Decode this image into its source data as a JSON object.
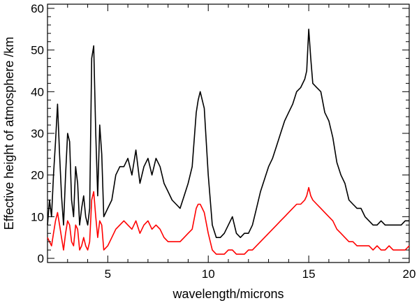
{
  "chart_data": {
    "type": "line",
    "title": "",
    "xlabel": "wavelength/microns",
    "ylabel": "Effective height of atmosphere /km",
    "xlim": [
      2,
      20
    ],
    "ylim": [
      -1,
      61
    ],
    "x_ticks": [
      5,
      10,
      15,
      20
    ],
    "y_ticks": [
      0,
      10,
      20,
      30,
      40,
      50,
      60
    ],
    "x_tick_labels": [
      "5",
      "10",
      "15",
      "20"
    ],
    "y_tick_labels": [
      "0",
      "10",
      "20",
      "30",
      "40",
      "50",
      "60"
    ],
    "grid": false,
    "legend": "none",
    "series": [
      {
        "color": "#000000",
        "x": [
          2.0,
          2.1,
          2.2,
          2.3,
          2.4,
          2.5,
          2.6,
          2.7,
          2.8,
          2.9,
          3.0,
          3.1,
          3.2,
          3.3,
          3.4,
          3.5,
          3.6,
          3.7,
          3.8,
          3.9,
          4.0,
          4.1,
          4.2,
          4.3,
          4.4,
          4.5,
          4.6,
          4.7,
          4.8,
          5.0,
          5.2,
          5.4,
          5.6,
          5.8,
          6.0,
          6.2,
          6.4,
          6.6,
          6.8,
          7.0,
          7.2,
          7.4,
          7.6,
          7.8,
          8.0,
          8.2,
          8.4,
          8.6,
          8.8,
          9.0,
          9.2,
          9.4,
          9.5,
          9.6,
          9.7,
          9.8,
          10.0,
          10.2,
          10.4,
          10.6,
          10.8,
          11.0,
          11.2,
          11.4,
          11.6,
          11.8,
          12.0,
          12.2,
          12.4,
          12.6,
          12.8,
          13.0,
          13.2,
          13.4,
          13.6,
          13.8,
          14.0,
          14.2,
          14.4,
          14.6,
          14.8,
          14.9,
          15.0,
          15.1,
          15.2,
          15.4,
          15.6,
          15.8,
          16.0,
          16.2,
          16.4,
          16.6,
          16.8,
          17.0,
          17.2,
          17.4,
          17.6,
          17.8,
          18.0,
          18.2,
          18.4,
          18.6,
          18.8,
          19.0,
          19.2,
          19.4,
          19.6,
          19.8,
          20.0
        ],
        "y": [
          8,
          14,
          10,
          20,
          28,
          37,
          25,
          15,
          8,
          20,
          30,
          28,
          14,
          10,
          22,
          18,
          8,
          12,
          15,
          10,
          8,
          12,
          48,
          51,
          30,
          15,
          32,
          25,
          10,
          12,
          14,
          20,
          22,
          22,
          24,
          20,
          26,
          18,
          22,
          24,
          20,
          24,
          22,
          18,
          16,
          14,
          13,
          12,
          15,
          18,
          22,
          35,
          38,
          40,
          38,
          36,
          20,
          8,
          5,
          5,
          6,
          8,
          10,
          6,
          5,
          6,
          6,
          8,
          12,
          16,
          19,
          22,
          24,
          27,
          30,
          33,
          35,
          37,
          40,
          41,
          43,
          45,
          55,
          48,
          42,
          41,
          40,
          35,
          33,
          29,
          23,
          20,
          18,
          14,
          13,
          12,
          12,
          10,
          9,
          8,
          8,
          9,
          8,
          8,
          8,
          8,
          8,
          9,
          9
        ]
      },
      {
        "color": "#ff0000",
        "x": [
          2.0,
          2.1,
          2.2,
          2.3,
          2.4,
          2.5,
          2.6,
          2.7,
          2.8,
          2.9,
          3.0,
          3.1,
          3.2,
          3.3,
          3.4,
          3.5,
          3.6,
          3.7,
          3.8,
          3.9,
          4.0,
          4.1,
          4.2,
          4.3,
          4.4,
          4.5,
          4.6,
          4.7,
          4.8,
          5.0,
          5.2,
          5.4,
          5.6,
          5.8,
          6.0,
          6.2,
          6.4,
          6.6,
          6.8,
          7.0,
          7.2,
          7.4,
          7.6,
          7.8,
          8.0,
          8.2,
          8.4,
          8.6,
          8.8,
          9.0,
          9.2,
          9.4,
          9.5,
          9.6,
          9.7,
          9.8,
          10.0,
          10.2,
          10.4,
          10.6,
          10.8,
          11.0,
          11.2,
          11.4,
          11.6,
          11.8,
          12.0,
          12.2,
          12.4,
          12.6,
          12.8,
          13.0,
          13.2,
          13.4,
          13.6,
          13.8,
          14.0,
          14.2,
          14.4,
          14.6,
          14.8,
          14.9,
          15.0,
          15.1,
          15.2,
          15.4,
          15.6,
          15.8,
          16.0,
          16.2,
          16.4,
          16.6,
          16.8,
          17.0,
          17.2,
          17.4,
          17.6,
          17.8,
          18.0,
          18.2,
          18.4,
          18.6,
          18.8,
          19.0,
          19.2,
          19.4,
          19.6,
          19.8,
          20.0
        ],
        "y": [
          5,
          4,
          3,
          6,
          9,
          11,
          8,
          5,
          2,
          6,
          9,
          8,
          4,
          3,
          8,
          7,
          2,
          3,
          5,
          3,
          2,
          4,
          14,
          16,
          10,
          5,
          9,
          8,
          2,
          3,
          5,
          7,
          8,
          9,
          8,
          7,
          9,
          6,
          8,
          9,
          7,
          8,
          7,
          5,
          4,
          4,
          4,
          4,
          5,
          6,
          7,
          12,
          13,
          13,
          12,
          11,
          6,
          2,
          1,
          1,
          1,
          2,
          2,
          1,
          1,
          1,
          2,
          2,
          3,
          4,
          5,
          6,
          7,
          8,
          9,
          10,
          11,
          12,
          13,
          13,
          14,
          15,
          17,
          15,
          14,
          13,
          12,
          11,
          10,
          9,
          7,
          6,
          5,
          4,
          4,
          3,
          3,
          3,
          3,
          2,
          3,
          2,
          2,
          3,
          2,
          2,
          2,
          2,
          3
        ]
      }
    ]
  }
}
